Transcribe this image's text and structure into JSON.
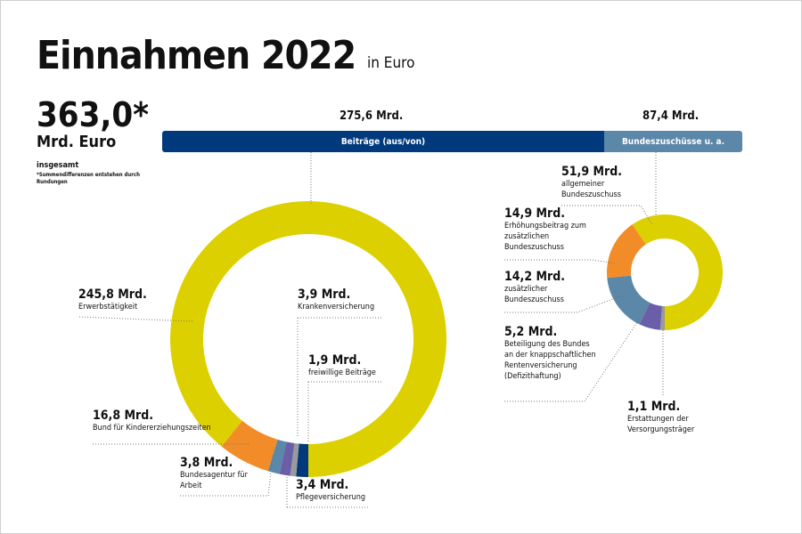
{
  "header": {
    "title": "Einnahmen 2022",
    "unit": "in Euro"
  },
  "total": {
    "value": "363,0*",
    "unit": "Mrd. Euro",
    "label": "insgesamt",
    "footnote": "*Summendifferenzen entstehen durch Rundungen"
  },
  "chart_data": [
    {
      "type": "bar",
      "orientation": "horizontal-stacked",
      "categories": [
        "Beiträge (aus/von)",
        "Bundeszuschüsse u. a."
      ],
      "values": [
        275.6,
        87.4
      ],
      "value_labels": [
        "275,6 Mrd.",
        "87,4 Mrd."
      ],
      "colors": [
        "#003a7d",
        "#5b87a8"
      ]
    },
    {
      "type": "pie",
      "donut": true,
      "title": "Beiträge (aus/von)",
      "slices": [
        {
          "label": "Krankenversicherung",
          "value": 3.9,
          "value_label": "3,9 Mrd.",
          "color": "#003a7d"
        },
        {
          "label": "freiwillige Beiträge",
          "value": 1.9,
          "value_label": "1,9 Mrd.",
          "color": "#9a9a9a"
        },
        {
          "label": "Pflegeversicherung",
          "value": 3.4,
          "value_label": "3,4 Mrd.",
          "color": "#6b5ea8"
        },
        {
          "label": "Bundesagentur für Arbeit",
          "value": 3.8,
          "value_label": "3,8 Mrd.",
          "color": "#5b87a8"
        },
        {
          "label": "Bund für Kindererziehungszeiten",
          "value": 16.8,
          "value_label": "16,8 Mrd.",
          "color": "#f28c28"
        },
        {
          "label": "Erwerbstätigkeit",
          "value": 245.8,
          "value_label": "245,8 Mrd.",
          "color": "#ddd000"
        }
      ]
    },
    {
      "type": "pie",
      "donut": true,
      "title": "Bundeszuschüsse u. a.",
      "slices": [
        {
          "label": "Erstattungen der Versorgungsträger",
          "value": 1.1,
          "value_label": "1,1 Mrd.",
          "color": "#9a9a9a"
        },
        {
          "label": "Beteiligung des Bundes an der knappschaftlichen Rentenversicherung (Defizithaftung)",
          "value": 5.2,
          "value_label": "5,2 Mrd.",
          "color": "#6b5ea8"
        },
        {
          "label": "zusätzlicher Bundeszuschuss",
          "value": 14.2,
          "value_label": "14,2 Mrd.",
          "color": "#5b87a8"
        },
        {
          "label": "Erhöhungsbeitrag zum zusätzlichen Bundeszuschuss",
          "value": 14.9,
          "value_label": "14,9 Mrd.",
          "color": "#f28c28"
        },
        {
          "label": "allgemeiner Bundeszuschuss",
          "value": 51.9,
          "value_label": "51,9 Mrd.",
          "color": "#ddd000"
        }
      ]
    }
  ]
}
